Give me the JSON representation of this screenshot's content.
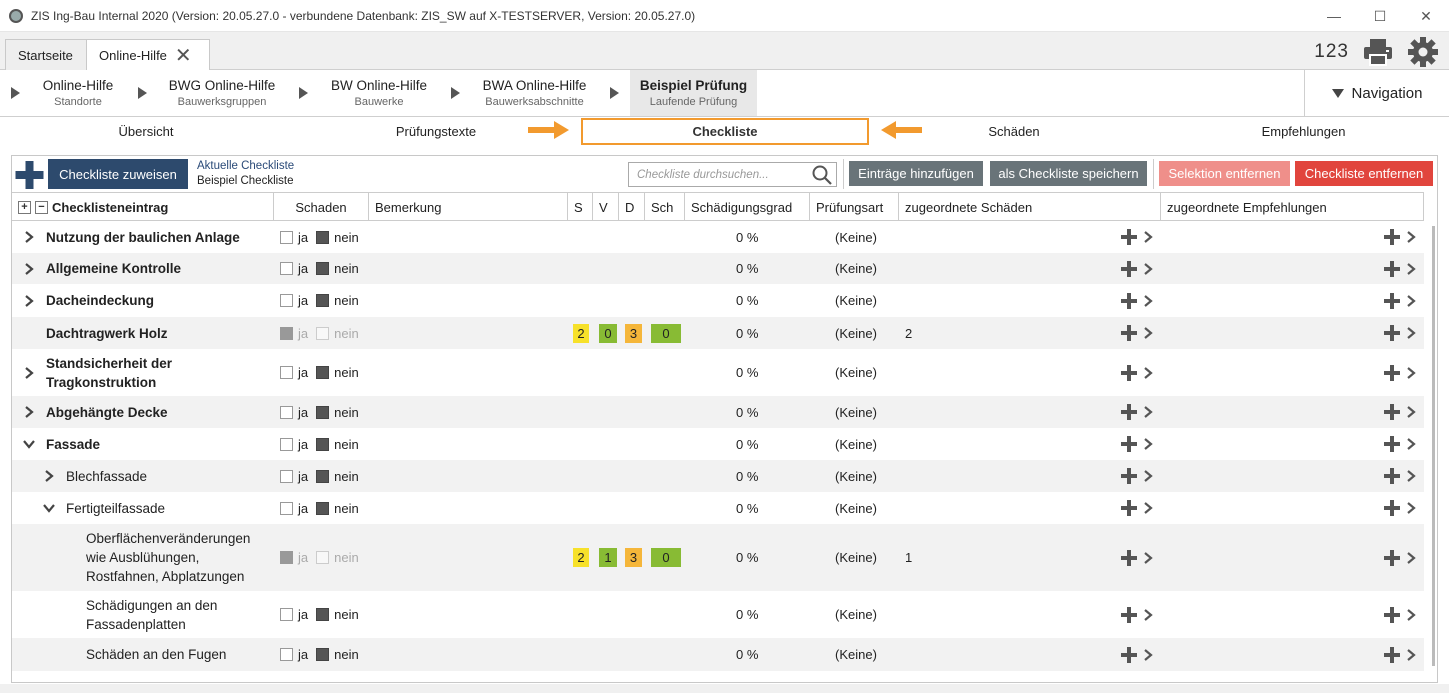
{
  "window": {
    "title": "ZIS Ing-Bau Internal 2020 (Version: 20.05.27.0 - verbundene Datenbank: ZIS_SW auf X-TESTSERVER, Version: 20.05.27.0)"
  },
  "tabs": [
    {
      "label": "Startseite"
    },
    {
      "label": "Online-Hilfe"
    }
  ],
  "tools": {
    "page_numbers": "123"
  },
  "breadcrumb": [
    {
      "title": "Online-Hilfe",
      "sub": "Standorte"
    },
    {
      "title": "BWG Online-Hilfe",
      "sub": "Bauwerksgruppen"
    },
    {
      "title": "BW Online-Hilfe",
      "sub": "Bauwerke"
    },
    {
      "title": "BWA Online-Hilfe",
      "sub": "Bauwerksabschnitte"
    },
    {
      "title": "Beispiel Prüfung",
      "sub": "Laufende Prüfung"
    }
  ],
  "nav": {
    "label": "Navigation"
  },
  "subtabs": [
    {
      "label": "Übersicht"
    },
    {
      "label": "Prüfungstexte"
    },
    {
      "label": "Checkliste"
    },
    {
      "label": "Schäden"
    },
    {
      "label": "Empfehlungen"
    }
  ],
  "toolbar": {
    "assign": "Checkliste zuweisen",
    "current_label": "Aktuelle Checkliste",
    "current_value": "Beispiel Checkliste",
    "search_placeholder": "Checkliste durchsuchen...",
    "add_entries": "Einträge hinzufügen",
    "save_as": "als Checkliste speichern",
    "remove_selection": "Selektion entfernen",
    "remove_checklist": "Checkliste entfernen"
  },
  "colors": {
    "primary": "#2d4a6d",
    "gray_btn": "#697479",
    "red_light": "#ef8f8a",
    "red": "#e1453d",
    "accent_orange": "#f29a2e",
    "badge_yellow": "#f7e12a",
    "badge_green": "#88bb34",
    "badge_orange": "#f5b63a"
  },
  "columns": {
    "entry": "Checklisteneintrag",
    "damage": "Schaden",
    "remark": "Bemerkung",
    "s": "S",
    "v": "V",
    "d": "D",
    "sch": "Sch",
    "degree": "Schädigungsgrad",
    "type": "Prüfungsart",
    "damages": "zugeordnete Schäden",
    "recs": "zugeordnete Empfehlungen"
  },
  "labels": {
    "yes": "ja",
    "no": "nein"
  },
  "rows": [
    {
      "name": "Nutzung der baulichen Anlage",
      "degree": "0 %",
      "type": "(Keine)",
      "damages": ""
    },
    {
      "name": "Allgemeine Kontrolle",
      "degree": "0 %",
      "type": "(Keine)",
      "damages": ""
    },
    {
      "name": "Dacheindeckung",
      "degree": "0 %",
      "type": "(Keine)",
      "damages": ""
    },
    {
      "name": "Dachtragwerk Holz",
      "s": "2",
      "v": "0",
      "d": "3",
      "sch": "0",
      "degree": "0 %",
      "type": "(Keine)",
      "damages": "2"
    },
    {
      "name": "Standsicherheit der Tragkonstruktion",
      "degree": "0 %",
      "type": "(Keine)",
      "damages": ""
    },
    {
      "name": "Abgehängte Decke",
      "degree": "0 %",
      "type": "(Keine)",
      "damages": ""
    },
    {
      "name": "Fassade",
      "degree": "0 %",
      "type": "(Keine)",
      "damages": ""
    },
    {
      "name": "Blechfassade",
      "degree": "0 %",
      "type": "(Keine)",
      "damages": ""
    },
    {
      "name": "Fertigteilfassade",
      "degree": "0 %",
      "type": "(Keine)",
      "damages": ""
    },
    {
      "name": "Oberflächenveränderungen wie Ausblühungen, Rostfahnen, Abplatzungen",
      "s": "2",
      "v": "1",
      "d": "3",
      "sch": "0",
      "degree": "0 %",
      "type": "(Keine)",
      "damages": "1"
    },
    {
      "name": "Schädigungen an den Fassadenplatten",
      "degree": "0 %",
      "type": "(Keine)",
      "damages": ""
    },
    {
      "name": "Schäden an den Fugen",
      "degree": "0 %",
      "type": "(Keine)",
      "damages": ""
    }
  ]
}
